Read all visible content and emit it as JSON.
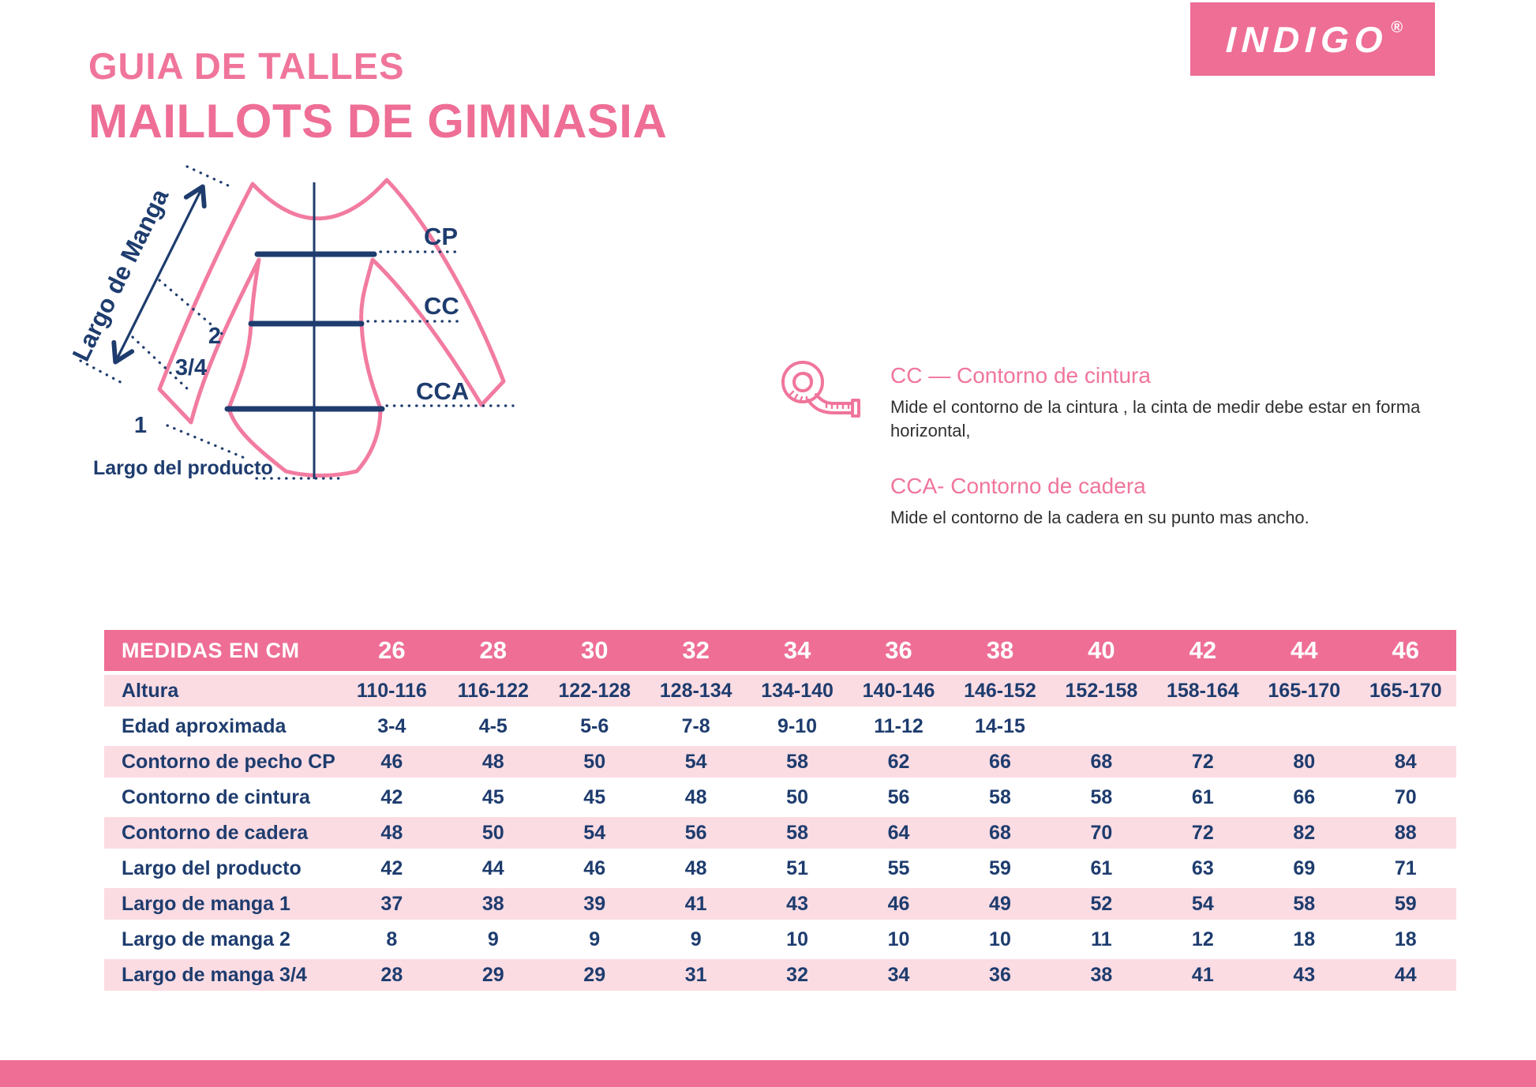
{
  "brand": {
    "logo_text": "INDIGO",
    "registered": "®"
  },
  "header": {
    "title1": "GUIA DE TALLES",
    "title2": "MAILLOTS DE GIMNASIA"
  },
  "diagram": {
    "sleeve_label": "Largo de Manga",
    "mark2": "2",
    "mark34": "3/4",
    "mark1": "1",
    "cp": "CP",
    "cc": "CC",
    "cca": "CCA",
    "product_length": "Largo del producto"
  },
  "legend": {
    "tape_icon": "measuring-tape-icon",
    "cc_heading": "CC — Contorno de cintura",
    "cc_text": "Mide el contorno de la cintura , la cinta de medir debe estar en forma horizontal,",
    "cca_heading": "CCA- Contorno de cadera",
    "cca_text": "Mide el contorno de la cadera en su punto mas ancho."
  },
  "table": {
    "header_label": "MEDIDAS EN CM",
    "sizes": [
      "26",
      "28",
      "30",
      "32",
      "34",
      "36",
      "38",
      "40",
      "42",
      "44",
      "46"
    ],
    "rows": [
      {
        "label": "Altura",
        "values": [
          "110-116",
          "116-122",
          "122-128",
          "128-134",
          "134-140",
          "140-146",
          "146-152",
          "152-158",
          "158-164",
          "165-170",
          "165-170"
        ]
      },
      {
        "label": "Edad aproximada",
        "values": [
          "3-4",
          "4-5",
          "5-6",
          "7-8",
          "9-10",
          "11-12",
          "14-15",
          "",
          "",
          "",
          ""
        ]
      },
      {
        "label": "Contorno de pecho CP",
        "values": [
          "46",
          "48",
          "50",
          "54",
          "58",
          "62",
          "66",
          "68",
          "72",
          "80",
          "84"
        ]
      },
      {
        "label": "Contorno de cintura",
        "values": [
          "42",
          "45",
          "45",
          "48",
          "50",
          "56",
          "58",
          "58",
          "61",
          "66",
          "70"
        ]
      },
      {
        "label": "Contorno de cadera",
        "values": [
          "48",
          "50",
          "54",
          "56",
          "58",
          "64",
          "68",
          "70",
          "72",
          "82",
          "88"
        ]
      },
      {
        "label": "Largo del producto",
        "values": [
          "42",
          "44",
          "46",
          "48",
          "51",
          "55",
          "59",
          "61",
          "63",
          "69",
          "71"
        ]
      },
      {
        "label": "Largo de manga 1",
        "values": [
          "37",
          "38",
          "39",
          "41",
          "43",
          "46",
          "49",
          "52",
          "54",
          "58",
          "59"
        ]
      },
      {
        "label": "Largo de manga 2",
        "values": [
          "8",
          "9",
          "9",
          "9",
          "10",
          "10",
          "10",
          "11",
          "12",
          "18",
          "18"
        ]
      },
      {
        "label": "Largo de manga 3/4",
        "values": [
          "28",
          "29",
          "29",
          "31",
          "32",
          "34",
          "36",
          "38",
          "41",
          "43",
          "44"
        ]
      }
    ]
  },
  "colors": {
    "accent_pink": "#ee6e96",
    "title_pink": "#f0759b",
    "light_pink_row": "#fbdce3",
    "navy": "#1e3c6e",
    "body_text": "#303030",
    "outline_pink": "#f27ba0",
    "white": "#ffffff"
  }
}
